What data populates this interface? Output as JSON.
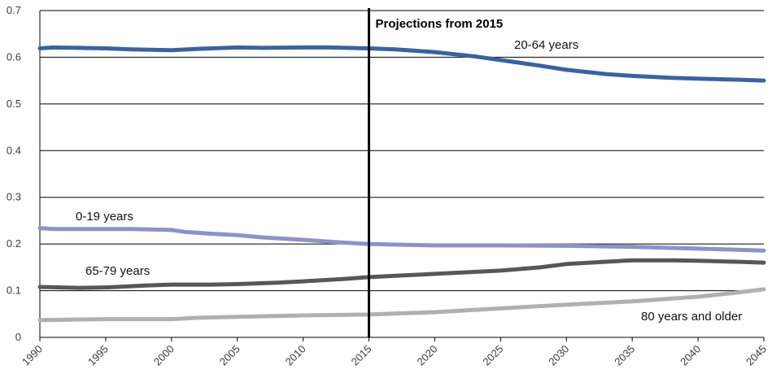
{
  "chart_data": {
    "type": "line",
    "title": "",
    "xlabel": "",
    "ylabel": "",
    "xlim": [
      1990,
      2045
    ],
    "ylim": [
      0,
      0.7
    ],
    "y_ticks": [
      "0",
      "0.1",
      "0.2",
      "0.3",
      "0.4",
      "0.5",
      "0.6",
      "0.7"
    ],
    "x_ticks": [
      "1990",
      "1995",
      "2000",
      "2005",
      "2010",
      "2015",
      "2020",
      "2025",
      "2030",
      "2035",
      "2040",
      "2045"
    ],
    "grid": "horizontal",
    "legend": "none",
    "annotation": {
      "label": "Projections from 2015",
      "x": 2015
    },
    "series": [
      {
        "name": "20-64 years",
        "color": "#3b62a0",
        "x": [
          1990,
          1991,
          1993,
          1995,
          1997,
          2000,
          2002,
          2005,
          2007,
          2010,
          2012,
          2015,
          2017,
          2020,
          2023,
          2025,
          2028,
          2030,
          2033,
          2035,
          2038,
          2040,
          2043,
          2045
        ],
        "values": [
          0.619,
          0.621,
          0.62,
          0.619,
          0.617,
          0.615,
          0.618,
          0.621,
          0.62,
          0.621,
          0.621,
          0.619,
          0.617,
          0.611,
          0.602,
          0.594,
          0.582,
          0.573,
          0.564,
          0.56,
          0.556,
          0.554,
          0.552,
          0.55
        ]
      },
      {
        "name": "0-19 years",
        "color": "#8f92c6",
        "x": [
          1990,
          1991,
          1993,
          1995,
          1997,
          2000,
          2001,
          2003,
          2005,
          2007,
          2010,
          2013,
          2015,
          2018,
          2020,
          2025,
          2030,
          2035,
          2040,
          2045
        ],
        "values": [
          0.234,
          0.232,
          0.232,
          0.232,
          0.232,
          0.23,
          0.226,
          0.222,
          0.219,
          0.214,
          0.209,
          0.203,
          0.2,
          0.198,
          0.197,
          0.197,
          0.196,
          0.194,
          0.19,
          0.186
        ]
      },
      {
        "name": "65-79 years",
        "color": "#575757",
        "x": [
          1990,
          1993,
          1995,
          1998,
          2000,
          2003,
          2005,
          2008,
          2010,
          2013,
          2015,
          2020,
          2025,
          2028,
          2030,
          2033,
          2035,
          2038,
          2040,
          2043,
          2045
        ],
        "values": [
          0.108,
          0.106,
          0.107,
          0.111,
          0.113,
          0.113,
          0.114,
          0.117,
          0.12,
          0.125,
          0.129,
          0.136,
          0.143,
          0.15,
          0.157,
          0.162,
          0.165,
          0.165,
          0.164,
          0.162,
          0.16
        ]
      },
      {
        "name": "80 years and older",
        "color": "#b0b0b0",
        "x": [
          1990,
          1995,
          2000,
          2002,
          2005,
          2010,
          2015,
          2020,
          2025,
          2030,
          2035,
          2040,
          2043,
          2045
        ],
        "values": [
          0.037,
          0.039,
          0.039,
          0.042,
          0.044,
          0.047,
          0.049,
          0.054,
          0.062,
          0.07,
          0.077,
          0.087,
          0.096,
          0.103
        ]
      }
    ]
  }
}
